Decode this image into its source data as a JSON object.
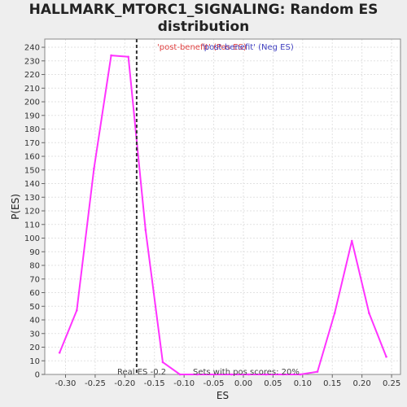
{
  "title_line1": "HALLMARK_MTORC1_SIGNALING: Random ES",
  "title_line2": "distribution",
  "colors": {
    "curve": "#ff33ff",
    "marker": "#333333",
    "legend_pos": "#e04040",
    "legend_neg": "#4040c0",
    "background": "#eeeeee",
    "plot_bg": "#ffffff",
    "grid": "#e2e2e2"
  },
  "chart_data": {
    "type": "line",
    "title": "HALLMARK_MTORC1_SIGNALING: Random ES distribution",
    "xlabel": "ES",
    "ylabel": "P(ES)",
    "xlim": [
      -0.335,
      0.265
    ],
    "ylim": [
      0,
      246
    ],
    "grid": true,
    "x_ticks": [
      -0.3,
      -0.25,
      -0.2,
      -0.15,
      -0.1,
      -0.05,
      0.0,
      0.05,
      0.1,
      0.15,
      0.2,
      0.25
    ],
    "x_tick_labels": [
      "-0.30",
      "-0.25",
      "-0.20",
      "-0.15",
      "-0.10",
      "-0.05",
      "0.00",
      "0.05",
      "0.10",
      "0.15",
      "0.20",
      "0.25"
    ],
    "y_ticks": [
      0,
      10,
      20,
      30,
      40,
      50,
      60,
      70,
      80,
      90,
      100,
      110,
      120,
      130,
      140,
      150,
      160,
      170,
      180,
      190,
      200,
      210,
      220,
      230,
      240
    ],
    "series": [
      {
        "x": [
          -0.31,
          -0.281,
          -0.252,
          -0.223,
          -0.194,
          -0.165,
          -0.136,
          -0.107,
          -0.078,
          -0.049,
          -0.02,
          0.009,
          0.038,
          0.067,
          0.096,
          0.125,
          0.154,
          0.183,
          0.212,
          0.241
        ],
        "y": [
          16,
          47,
          151,
          234,
          233,
          106,
          9,
          0,
          0,
          0,
          0,
          0,
          0,
          0,
          0,
          2,
          45,
          98,
          45,
          13
        ]
      }
    ],
    "real_es": -0.18,
    "annotations": {
      "legend_pos": "'post-benefit' (Pos ES)",
      "legend_neg": "'post-benefit' (Neg ES)",
      "real_es_label": "Real ES -0.2",
      "pos_scores_label": "Sets with pos scores: 20%"
    }
  }
}
